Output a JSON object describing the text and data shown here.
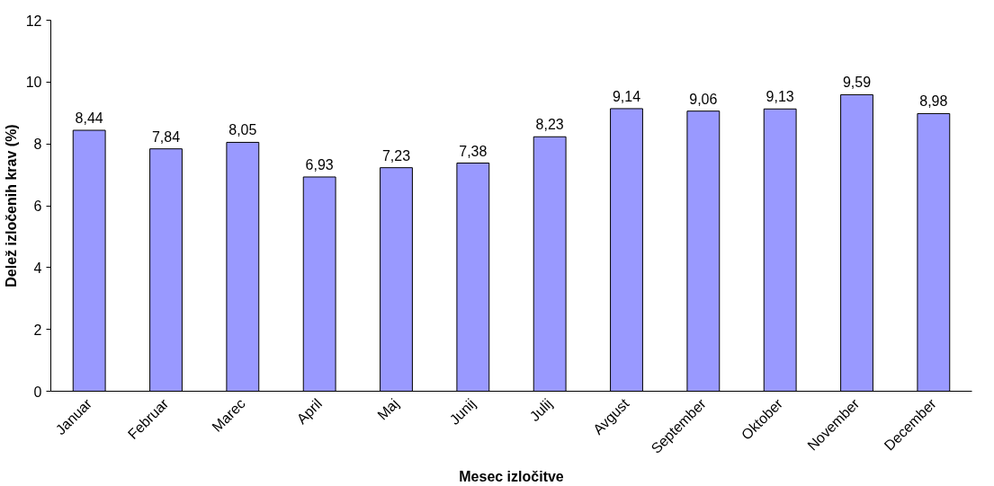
{
  "chart_data": {
    "type": "bar",
    "categories": [
      "Januar",
      "Februar",
      "Marec",
      "April",
      "Maj",
      "Junij",
      "Julij",
      "Avgust",
      "September",
      "Oktober",
      "November",
      "December"
    ],
    "values": [
      8.44,
      7.84,
      8.05,
      6.93,
      7.23,
      7.38,
      8.23,
      9.14,
      9.06,
      9.13,
      9.59,
      8.98
    ],
    "value_labels": [
      "8,44",
      "7,84",
      "8,05",
      "6,93",
      "7,23",
      "7,38",
      "8,23",
      "9,14",
      "9,06",
      "9,13",
      "9,59",
      "8,98"
    ],
    "color": "#9999ff",
    "xlabel": "Mesec izločitve",
    "ylabel": "Delež izločenih krav (%)",
    "ylim": [
      0,
      12
    ],
    "yticks": [
      0,
      2,
      4,
      6,
      8,
      10,
      12
    ],
    "grid": false
  }
}
